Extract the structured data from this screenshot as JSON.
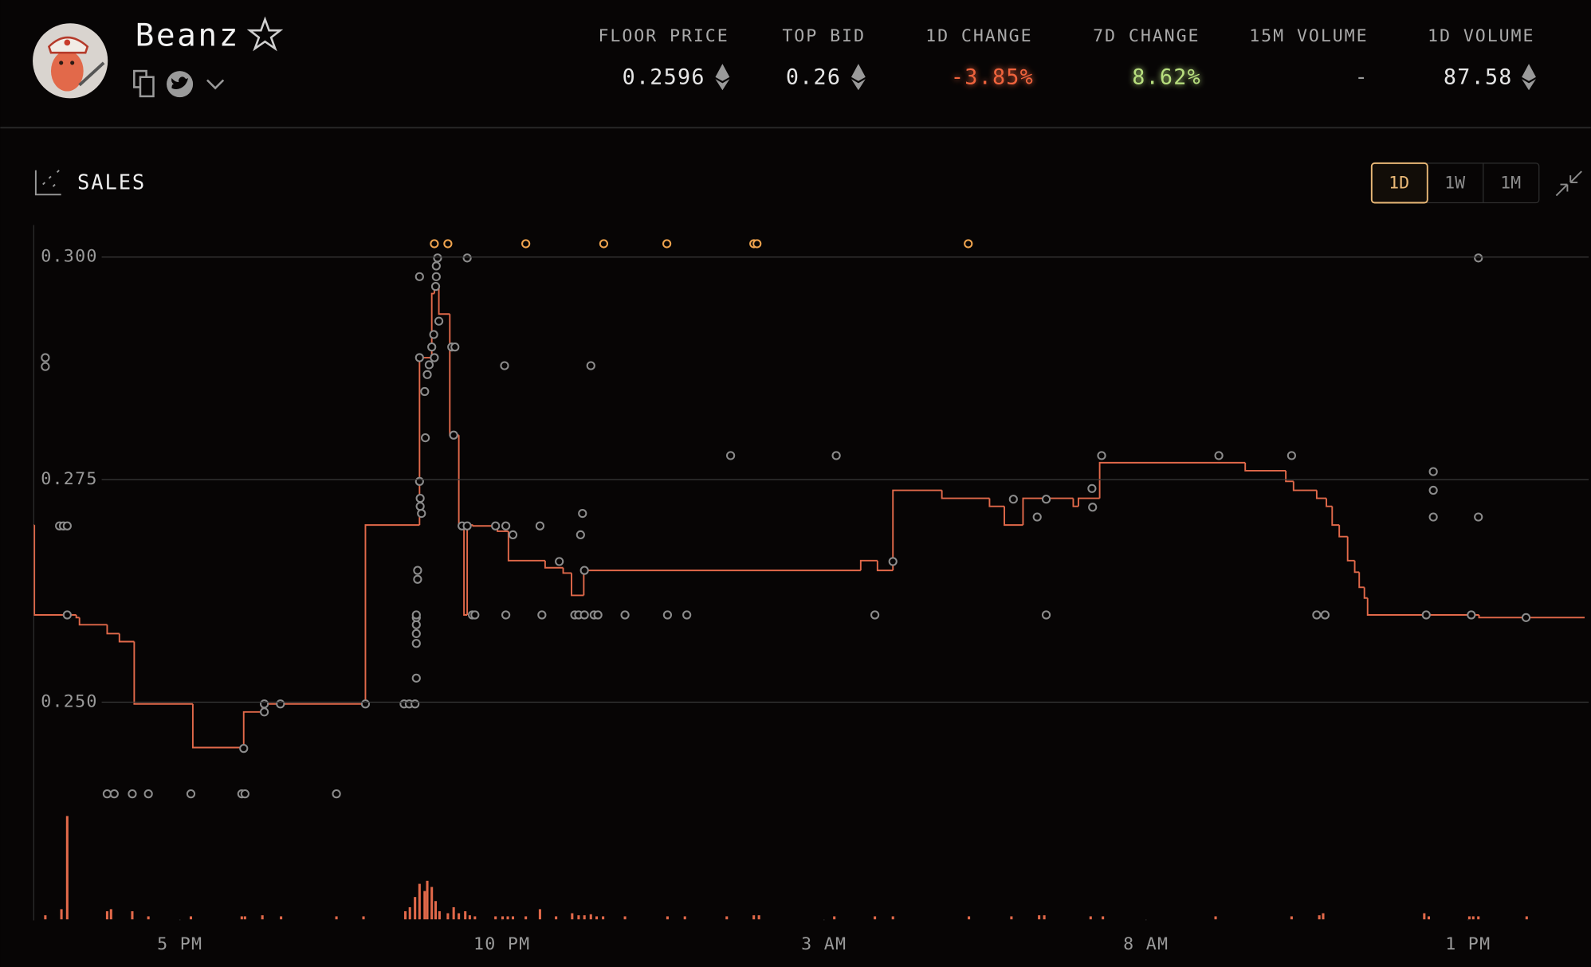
{
  "header": {
    "title": "Beanz",
    "stats": [
      {
        "label": "FLOOR PRICE",
        "value": "0.2596"
      },
      {
        "label": "TOP BID",
        "value": "0.26"
      },
      {
        "label": "1D CHANGE",
        "value": "-3.85%"
      },
      {
        "label": "7D CHANGE",
        "value": "8.62%"
      },
      {
        "label": "15M VOLUME",
        "value": "-"
      },
      {
        "label": "1D VOLUME",
        "value": "87.58"
      }
    ]
  },
  "panel": {
    "title": "SALES",
    "ranges": [
      "1D",
      "1W",
      "1M"
    ]
  },
  "chart_data": {
    "type": "step-scatter",
    "xlim": [
      14.73,
      38.81
    ],
    "xticks": [
      {
        "value": 17,
        "label": "5 PM"
      },
      {
        "value": 22,
        "label": "10 PM"
      },
      {
        "value": 27,
        "label": "3 AM"
      },
      {
        "value": 32,
        "label": "8 AM"
      },
      {
        "value": 37,
        "label": "1 PM"
      }
    ],
    "ylim": [
      0.2256,
      0.3036
    ],
    "yticks": [
      {
        "value": 0.3,
        "label": "0.300"
      },
      {
        "value": 0.275,
        "label": "0.275"
      },
      {
        "value": 0.25,
        "label": "0.250"
      }
    ],
    "y2lim": [
      0,
      60
    ],
    "grid": true,
    "floor": {
      "color": "#e2694a",
      "x": [
        14.73,
        14.74,
        15.39,
        15.44,
        15.87,
        16.06,
        16.29,
        17.2,
        17.99,
        18.28,
        19.88,
        20.72,
        20.91,
        20.95,
        21.02,
        21.19,
        21.33,
        21.41,
        21.46,
        21.55,
        21.93,
        22.1,
        22.67,
        22.95,
        23.08,
        23.27,
        27.57,
        27.83,
        28.07,
        28.83,
        29.57,
        29.8,
        30.09,
        30.87,
        30.95,
        31.28,
        33.54,
        34.17,
        34.29,
        34.65,
        34.8,
        34.89,
        35.0,
        35.13,
        35.24,
        35.31,
        35.39,
        35.44,
        37.17,
        38.81
      ],
      "values": [
        0.2699,
        0.2598,
        0.2595,
        0.2587,
        0.2577,
        0.2568,
        0.2498,
        0.2449,
        0.2489,
        0.2498,
        0.2699,
        0.2887,
        0.2959,
        0.2967,
        0.2936,
        0.28,
        0.2699,
        0.2598,
        0.2699,
        0.2698,
        0.2692,
        0.2659,
        0.2651,
        0.2645,
        0.262,
        0.2648,
        0.2659,
        0.2648,
        0.2738,
        0.2729,
        0.272,
        0.2699,
        0.2729,
        0.272,
        0.2729,
        0.2769,
        0.276,
        0.2748,
        0.2738,
        0.2729,
        0.272,
        0.2699,
        0.2686,
        0.2659,
        0.2646,
        0.2629,
        0.2617,
        0.2598,
        0.2595,
        0.2595
      ]
    },
    "sales": {
      "color": "#8c8c8c",
      "x": [
        14.91,
        14.91,
        15.13,
        15.19,
        15.25,
        15.25,
        15.87,
        15.98,
        16.26,
        16.51,
        17.17,
        17.96,
        18.01,
        17.99,
        18.31,
        18.31,
        18.56,
        19.43,
        19.88,
        20.48,
        20.56,
        20.65,
        20.67,
        20.67,
        20.67,
        20.67,
        20.67,
        20.67,
        20.69,
        20.69,
        20.72,
        20.72,
        20.72,
        20.73,
        20.73,
        20.75,
        20.8,
        20.81,
        20.84,
        20.87,
        20.91,
        20.94,
        20.95,
        20.97,
        20.98,
        20.98,
        21.0,
        21.02,
        21.22,
        21.27,
        21.25,
        21.38,
        21.46,
        21.46,
        21.54,
        21.58,
        21.9,
        22.04,
        22.06,
        22.06,
        22.17,
        22.59,
        22.62,
        22.89,
        23.13,
        23.19,
        23.22,
        23.25,
        23.28,
        23.28,
        23.38,
        23.43,
        23.49,
        23.91,
        24.57,
        24.87,
        25.55,
        27.19,
        27.79,
        28.07,
        29.94,
        30.31,
        30.45,
        30.45,
        31.16,
        31.17,
        31.31,
        33.13,
        34.26,
        34.65,
        34.78,
        36.35,
        36.46,
        36.46,
        36.46,
        37.05,
        37.16,
        37.16,
        37.9
      ],
      "values": [
        0.2887,
        0.2877,
        0.2698,
        0.2698,
        0.2698,
        0.2598,
        0.2397,
        0.2397,
        0.2397,
        0.2397,
        0.2397,
        0.2397,
        0.2397,
        0.2448,
        0.2498,
        0.2489,
        0.2498,
        0.2397,
        0.2498,
        0.2498,
        0.2498,
        0.2498,
        0.2527,
        0.2566,
        0.2577,
        0.2587,
        0.2595,
        0.2598,
        0.2638,
        0.2648,
        0.2748,
        0.2887,
        0.2978,
        0.2729,
        0.272,
        0.2712,
        0.2849,
        0.2797,
        0.2868,
        0.2879,
        0.2899,
        0.2913,
        0.2887,
        0.2967,
        0.2978,
        0.299,
        0.2999,
        0.2928,
        0.2899,
        0.2899,
        0.28,
        0.2698,
        0.2698,
        0.2999,
        0.2598,
        0.2598,
        0.2698,
        0.2878,
        0.2698,
        0.2598,
        0.2688,
        0.2698,
        0.2598,
        0.2658,
        0.2598,
        0.2598,
        0.2688,
        0.2712,
        0.2598,
        0.2648,
        0.2878,
        0.2598,
        0.2598,
        0.2598,
        0.2598,
        0.2598,
        0.2777,
        0.2777,
        0.2598,
        0.2658,
        0.2728,
        0.2708,
        0.2728,
        0.2598,
        0.274,
        0.2719,
        0.2777,
        0.2777,
        0.2777,
        0.2598,
        0.2598,
        0.2598,
        0.2759,
        0.2738,
        0.2708,
        0.2598,
        0.2708,
        0.2999,
        0.2595
      ]
    },
    "outliers": {
      "color": "#f0a44e",
      "x": [
        20.95,
        21.16,
        22.37,
        23.58,
        24.56,
        25.91,
        25.96,
        29.24
      ],
      "values": [
        0.3015,
        0.3015,
        0.3015,
        0.3015,
        0.3015,
        0.3015,
        0.3015,
        0.3015
      ]
    },
    "volume": {
      "color": "#e2694a",
      "axis": "y2",
      "x": [
        14.91,
        15.16,
        15.25,
        15.87,
        15.93,
        16.26,
        16.51,
        17.17,
        17.96,
        18.01,
        18.28,
        18.57,
        19.43,
        19.85,
        20.5,
        20.57,
        20.65,
        20.72,
        20.8,
        20.84,
        20.91,
        20.97,
        21.03,
        21.16,
        21.25,
        21.33,
        21.43,
        21.5,
        21.58,
        21.9,
        22.01,
        22.09,
        22.17,
        22.37,
        22.59,
        22.84,
        23.09,
        23.19,
        23.28,
        23.38,
        23.47,
        23.57,
        23.91,
        24.57,
        24.84,
        25.49,
        25.91,
        25.99,
        27.16,
        27.79,
        28.07,
        29.25,
        29.91,
        30.34,
        30.42,
        31.14,
        31.33,
        33.08,
        34.26,
        34.69,
        34.75,
        36.32,
        36.39,
        37.02,
        37.08,
        37.16,
        37.91
      ],
      "values": [
        0.35,
        0.88,
        8.93,
        0.7,
        0.88,
        0.7,
        0.26,
        0.26,
        0.26,
        0.26,
        0.35,
        0.26,
        0.26,
        0.26,
        0.7,
        1.05,
        1.93,
        3.07,
        2.45,
        3.33,
        2.8,
        1.58,
        0.7,
        0.53,
        1.05,
        0.53,
        0.7,
        0.35,
        0.26,
        0.26,
        0.26,
        0.26,
        0.26,
        0.26,
        0.88,
        0.26,
        0.53,
        0.35,
        0.35,
        0.44,
        0.26,
        0.26,
        0.26,
        0.26,
        0.26,
        0.26,
        0.35,
        0.35,
        0.26,
        0.26,
        0.26,
        0.26,
        0.26,
        0.35,
        0.35,
        0.26,
        0.26,
        0.26,
        0.26,
        0.35,
        0.53,
        0.53,
        0.26,
        0.26,
        0.26,
        0.26,
        0.26
      ]
    }
  }
}
